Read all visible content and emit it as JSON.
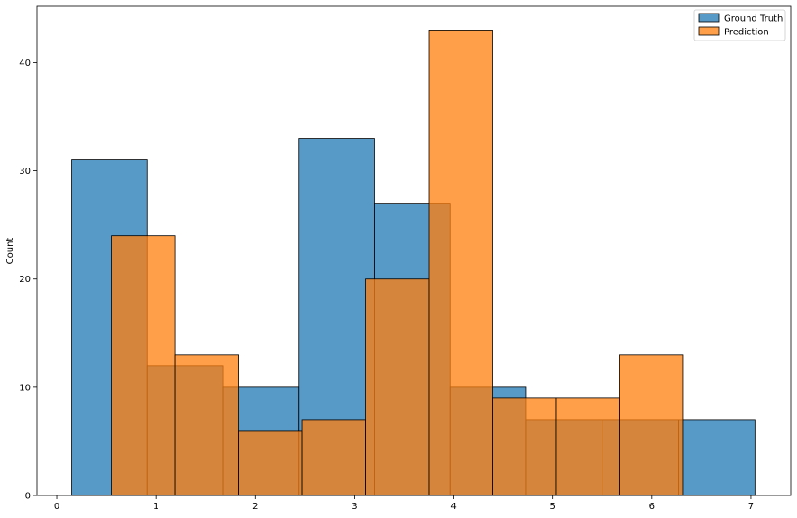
{
  "chart_data": {
    "type": "histogram",
    "title": "",
    "xlabel": "",
    "ylabel": "Count",
    "xlim": [
      -0.2,
      7.4
    ],
    "ylim": [
      0,
      45.2
    ],
    "xticks": [
      0,
      1,
      2,
      3,
      4,
      5,
      6,
      7
    ],
    "yticks": [
      0,
      10,
      20,
      30,
      40
    ],
    "legend_position": "top-right",
    "series": [
      {
        "name": "Ground Truth",
        "color": "#1f77b4",
        "bins": [
          {
            "x0": 0.15,
            "x1": 0.91,
            "count": 31
          },
          {
            "x0": 0.91,
            "x1": 1.68,
            "count": 12
          },
          {
            "x0": 1.68,
            "x1": 2.44,
            "count": 10
          },
          {
            "x0": 2.44,
            "x1": 3.2,
            "count": 33
          },
          {
            "x0": 3.2,
            "x1": 3.97,
            "count": 27
          },
          {
            "x0": 3.97,
            "x1": 4.73,
            "count": 10
          },
          {
            "x0": 4.73,
            "x1": 5.5,
            "count": 7
          },
          {
            "x0": 5.5,
            "x1": 6.27,
            "count": 7
          },
          {
            "x0": 6.27,
            "x1": 7.04,
            "count": 7
          }
        ]
      },
      {
        "name": "Prediction",
        "color": "#ff7f0e",
        "bins": [
          {
            "x0": 0.55,
            "x1": 1.19,
            "count": 24
          },
          {
            "x0": 1.19,
            "x1": 1.83,
            "count": 13
          },
          {
            "x0": 1.83,
            "x1": 2.47,
            "count": 6
          },
          {
            "x0": 2.47,
            "x1": 3.11,
            "count": 7
          },
          {
            "x0": 3.11,
            "x1": 3.75,
            "count": 20
          },
          {
            "x0": 3.75,
            "x1": 4.39,
            "count": 43
          },
          {
            "x0": 4.39,
            "x1": 5.03,
            "count": 9
          },
          {
            "x0": 5.03,
            "x1": 5.67,
            "count": 9
          },
          {
            "x0": 5.67,
            "x1": 6.31,
            "count": 13
          }
        ]
      }
    ]
  }
}
